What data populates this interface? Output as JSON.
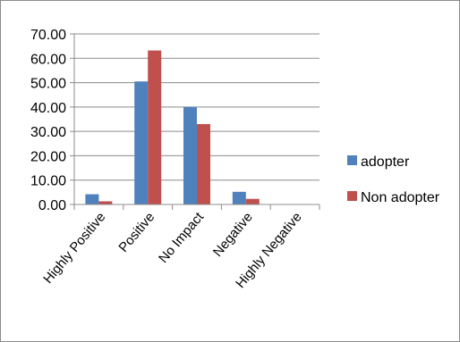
{
  "chart_data": {
    "type": "bar",
    "title": "",
    "xlabel": "",
    "ylabel": "",
    "categories": [
      "Highly Positive",
      "Positive",
      "No Impact",
      "Negative",
      "Highly Negative"
    ],
    "series": [
      {
        "name": "adopter",
        "color": "#4f81bd",
        "values": [
          4.2,
          50.5,
          40.0,
          5.2,
          0.0
        ]
      },
      {
        "name": "Non adopter",
        "color": "#c0504d",
        "values": [
          1.3,
          63.2,
          33.0,
          2.3,
          0.0
        ]
      }
    ],
    "ylim": [
      0,
      70
    ],
    "yticks": [
      "0.00",
      "10.00",
      "20.00",
      "30.00",
      "40.00",
      "50.00",
      "60.00",
      "70.00"
    ],
    "grid": true,
    "legend_position": "right"
  }
}
